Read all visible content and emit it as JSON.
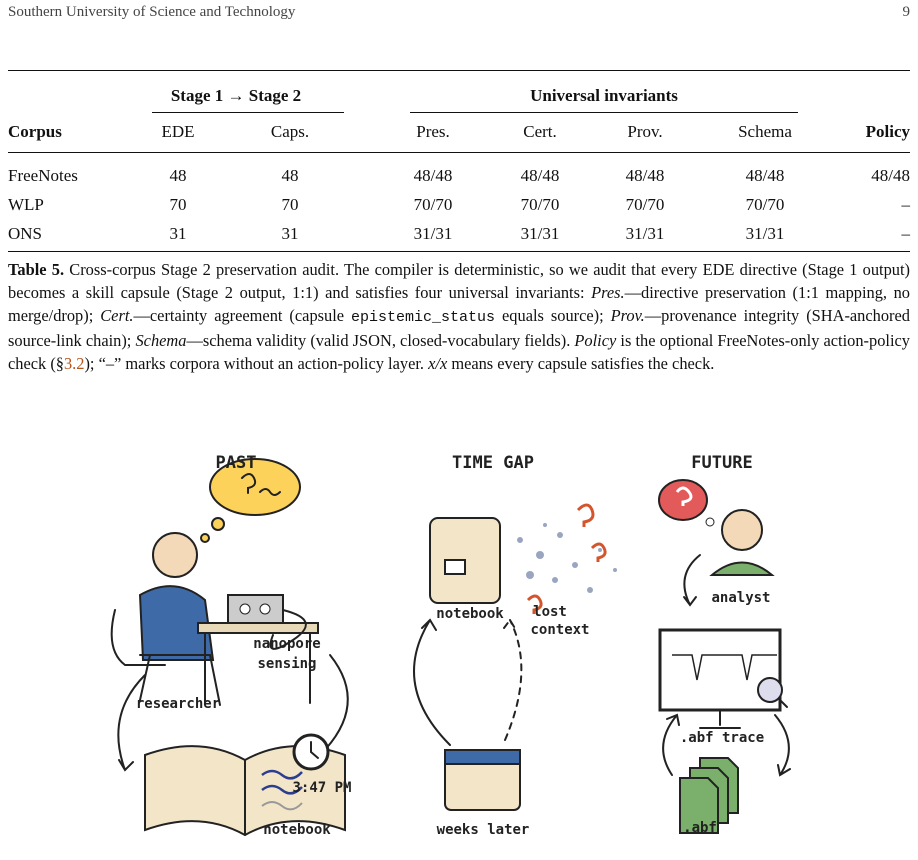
{
  "header": {
    "left": "Southern University of Science and Technology",
    "page": "9"
  },
  "table": {
    "groups": [
      "Stage 1 → Stage 2",
      "Universal invariants"
    ],
    "columns": [
      "Corpus",
      "EDE",
      "Caps.",
      "Pres.",
      "Cert.",
      "Prov.",
      "Schema",
      "Policy"
    ],
    "rows": [
      [
        "FreeNotes",
        "48",
        "48",
        "48/48",
        "48/48",
        "48/48",
        "48/48",
        "48/48"
      ],
      [
        "WLP",
        "70",
        "70",
        "70/70",
        "70/70",
        "70/70",
        "70/70",
        "–"
      ],
      [
        "ONS",
        "31",
        "31",
        "31/31",
        "31/31",
        "31/31",
        "31/31",
        "–"
      ]
    ]
  },
  "caption": [
    "Table 5.",
    " Cross-corpus Stage 2 preservation audit. The compiler is deterministic, so we audit that every EDE directive (Stage 1 output) becomes a skill capsule (Stage 2 output, 1:1) and satisfies four universal invariants: ",
    "Pres.",
    "—directive preservation (1:1 mapping, no merge/drop); ",
    "Cert.",
    "—certainty agreement (capsule ",
    "epistemic_status",
    " equals source); ",
    "Prov.",
    "—provenance integrity (SHA-anchored source-link chain); ",
    "Schema",
    "—schema validity (valid JSON, closed-vocabulary fields). ",
    "Policy",
    " is the optional FreeNotes-only action-policy check (§",
    "3.2",
    "); “–” marks corpora without an action-policy layer. ",
    "x/x",
    " means every capsule satisfies the check."
  ],
  "figure": {
    "past": "PAST",
    "time_gap": "TIME GAP",
    "future": "FUTURE",
    "researcher": "researcher",
    "nanopore": [
      "nanopore",
      "sensing"
    ],
    "clock": "3:47 PM",
    "notebook_past": "notebook",
    "notebook_gap": "notebook",
    "lost": [
      "lost",
      "context"
    ],
    "weeks": "weeks later",
    "analyst": "analyst",
    "trace": ".abf trace",
    "abf": ".abf"
  }
}
